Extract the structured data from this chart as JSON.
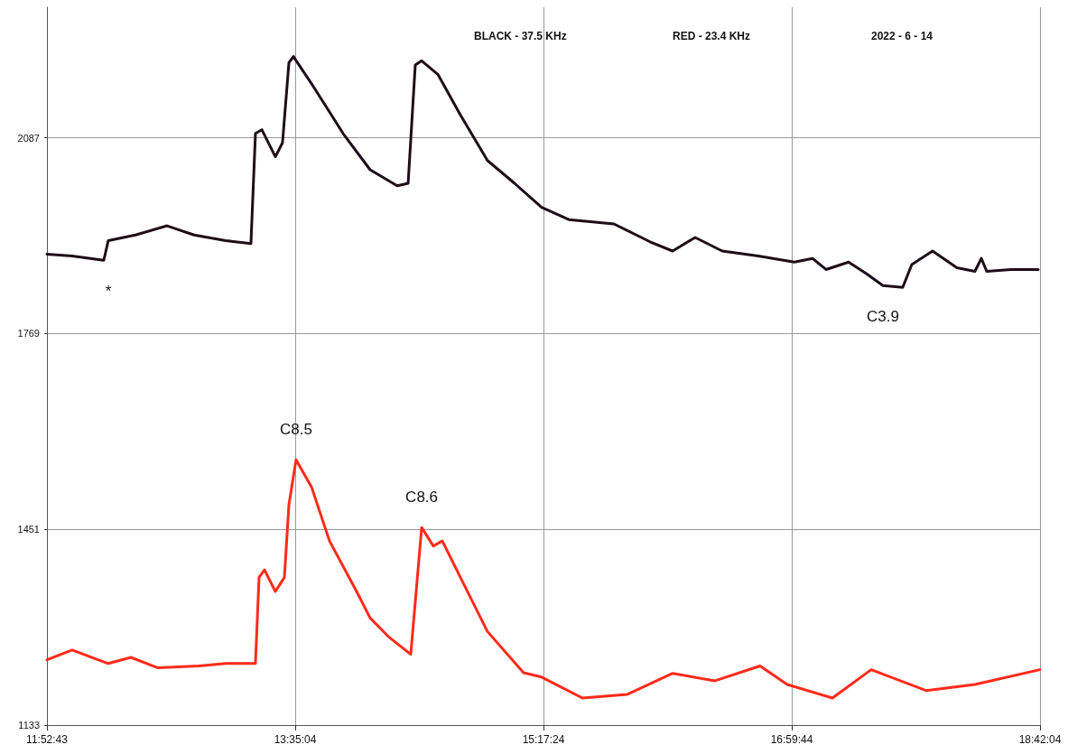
{
  "chart_data": {
    "type": "line",
    "annotations": [
      "BLACK - 37.5 KHz",
      "RED - 23.4 KHz",
      "2022 - 6 - 14",
      {
        "text": "*",
        "x": 12.3,
        "y": 1888
      },
      {
        "text": "C8.5",
        "x": 13.59,
        "y": 1564
      },
      {
        "text": "C8.6",
        "x": 14.453,
        "y": 1454
      },
      {
        "text": "C3.9",
        "x": 17.622,
        "y": 1847
      }
    ],
    "xlim": [
      11.8786,
      18.7011
    ],
    "xticks": [
      {
        "value": 11.8786,
        "label": "11:52:43"
      },
      {
        "value": 13.5844,
        "label": "13:35:04"
      },
      {
        "value": 15.29,
        "label": "15:17:24"
      },
      {
        "value": 16.9956,
        "label": "16:59:44"
      },
      {
        "value": 18.7011,
        "label": "18:42:04"
      }
    ],
    "ylim": [
      1133,
      2299
    ],
    "yticks": [
      1133,
      1451,
      1769,
      2087
    ],
    "grid": true,
    "marker": "none",
    "line_style": "solid",
    "series": [
      {
        "color": "#1e0c18",
        "x": [
          11.879,
          12.052,
          12.269,
          12.3,
          12.486,
          12.704,
          12.89,
          13.107,
          13.28,
          13.311,
          13.355,
          13.448,
          13.497,
          13.541,
          13.572,
          13.696,
          13.913,
          14.099,
          14.285,
          14.36,
          14.409,
          14.453,
          14.564,
          14.719,
          14.905,
          15.091,
          15.277,
          15.464,
          15.774,
          16.022,
          16.177,
          16.332,
          16.518,
          16.766,
          17.014,
          17.138,
          17.231,
          17.386,
          17.51,
          17.622,
          17.758,
          17.82,
          17.963,
          18.13,
          18.254,
          18.298,
          18.335,
          18.502,
          18.689
        ],
        "values": [
          1898,
          1895,
          1888,
          1920,
          1929,
          1944,
          1929,
          1920,
          1915,
          2094,
          2100,
          2056,
          2079,
          2209,
          2219,
          2175,
          2094,
          2035,
          2009,
          2013,
          2205,
          2212,
          2190,
          2124,
          2050,
          2013,
          1974,
          1954,
          1947,
          1918,
          1903,
          1925,
          1903,
          1895,
          1885,
          1891,
          1873,
          1885,
          1866,
          1847,
          1844,
          1881,
          1903,
          1876,
          1870,
          1891,
          1870,
          1873,
          1873
        ]
      },
      {
        "color": "#ff2a1a",
        "x": [
          11.879,
          12.052,
          12.3,
          12.455,
          12.641,
          12.921,
          13.107,
          13.311,
          13.336,
          13.373,
          13.448,
          13.51,
          13.541,
          13.59,
          13.696,
          13.82,
          14.006,
          14.099,
          14.223,
          14.378,
          14.453,
          14.533,
          14.595,
          14.719,
          14.905,
          15.153,
          15.277,
          15.557,
          15.867,
          16.177,
          16.468,
          16.778,
          16.964,
          17.275,
          17.541,
          17.92,
          18.254,
          18.7
        ],
        "values": [
          1239,
          1255,
          1233,
          1243,
          1226,
          1229,
          1233,
          1233,
          1373,
          1385,
          1350,
          1373,
          1491,
          1564,
          1520,
          1432,
          1350,
          1307,
          1277,
          1248,
          1454,
          1424,
          1432,
          1373,
          1285,
          1218,
          1211,
          1177,
          1183,
          1217,
          1205,
          1229,
          1199,
          1177,
          1223,
          1189,
          1199,
          1223
        ]
      }
    ]
  }
}
